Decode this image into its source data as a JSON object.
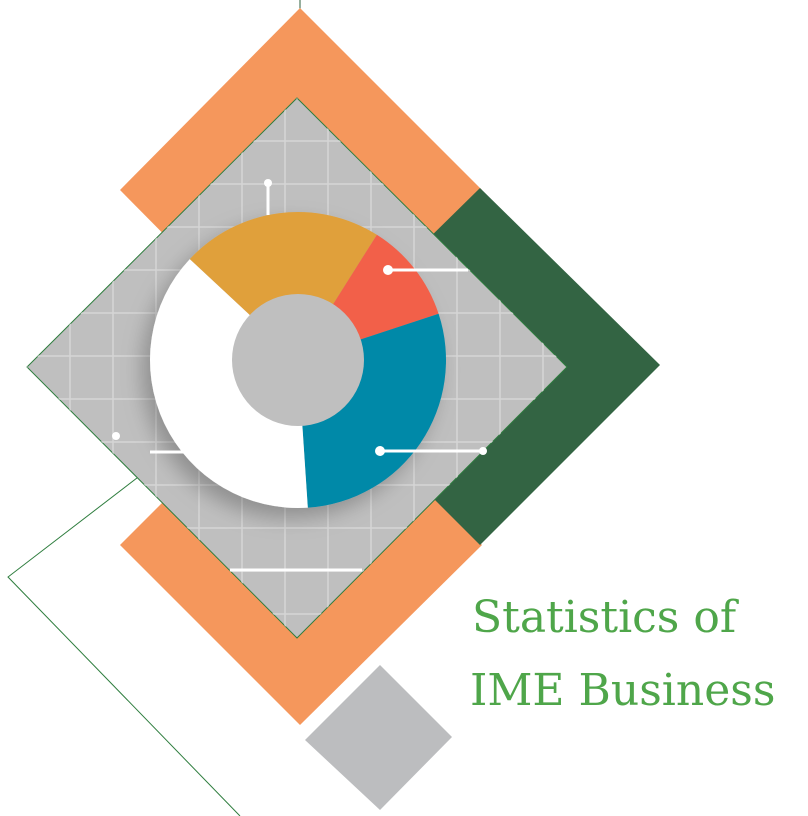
{
  "chart_data": {
    "type": "donut",
    "title_lines": [
      "Statistics of",
      "IME Business"
    ],
    "categories": [
      null,
      null,
      null,
      null
    ],
    "values": [
      22,
      11,
      29,
      38
    ],
    "colors": [
      "#e0a03a",
      "#f2604a",
      "#0089a8",
      "#ffffff"
    ],
    "legend": false
  }
}
